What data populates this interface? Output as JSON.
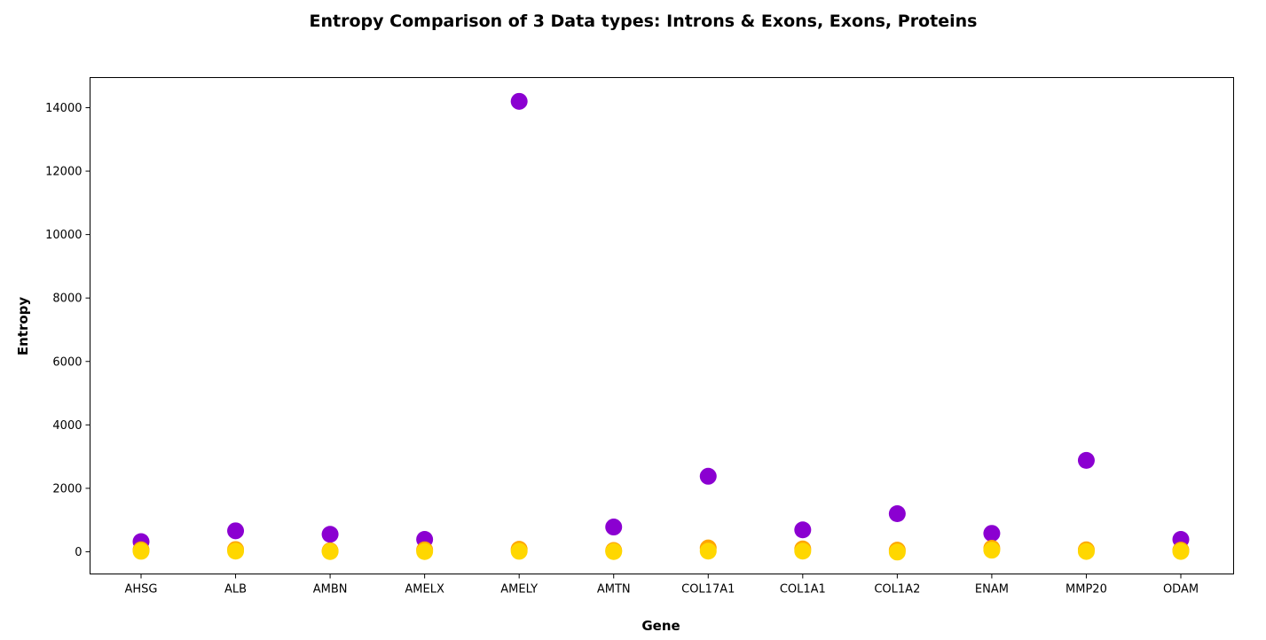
{
  "chart_data": {
    "type": "scatter",
    "title": "Entropy Comparison of 3 Data types: Introns & Exons, Exons, Proteins",
    "xlabel": "Gene",
    "ylabel": "Entropy",
    "categories": [
      "AHSG",
      "ALB",
      "AMBN",
      "AMELX",
      "AMELY",
      "AMTN",
      "COL17A1",
      "COL1A1",
      "COL1A2",
      "ENAM",
      "MMP20",
      "ODAM"
    ],
    "ylim": [
      -700,
      14950
    ],
    "yticks": [
      0,
      2000,
      4000,
      6000,
      8000,
      10000,
      12000,
      14000
    ],
    "grid": false,
    "series": [
      {
        "color": "#8B00D1",
        "values": [
          320,
          660,
          550,
          390,
          14200,
          780,
          2380,
          690,
          1200,
          580,
          2880,
          390
        ]
      },
      {
        "color": "#FFA500",
        "values": [
          60,
          70,
          30,
          60,
          80,
          40,
          120,
          90,
          50,
          110,
          60,
          50
        ]
      },
      {
        "color": "#FFD700",
        "values": [
          15,
          20,
          5,
          5,
          15,
          5,
          20,
          20,
          -10,
          50,
          10,
          10
        ]
      }
    ]
  }
}
